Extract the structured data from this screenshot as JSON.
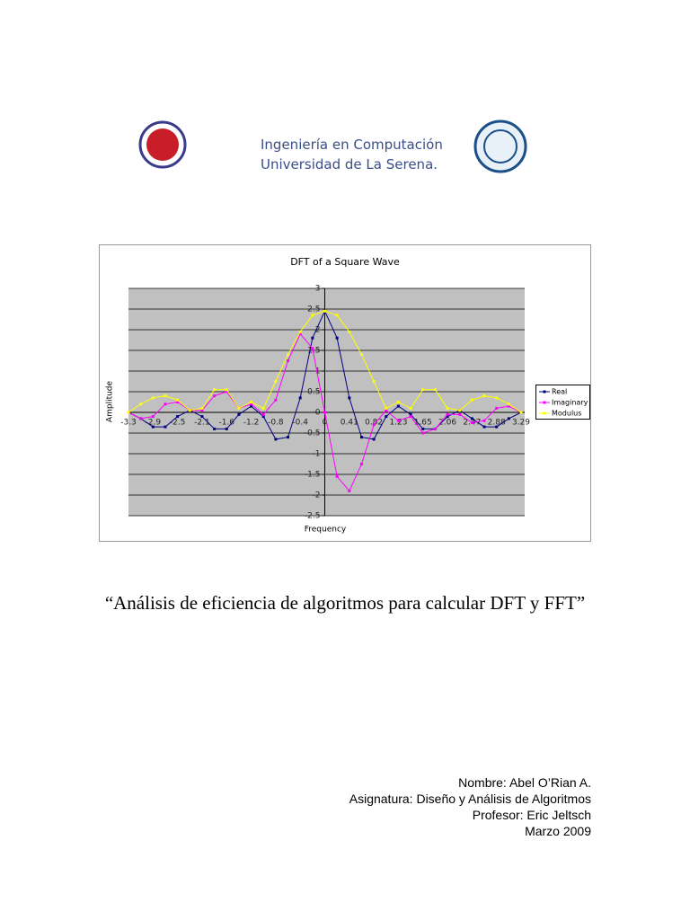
{
  "header": {
    "line1": "Ingeniería en Computación",
    "line2": "Universidad de La Serena."
  },
  "chart_data": {
    "type": "line",
    "title": "DFT of a Square Wave",
    "x_label": "Frequency",
    "y_label": "Amplitude",
    "categories": [
      "-3.3",
      null,
      "-2.9",
      null,
      "-2.5",
      null,
      "-2.1",
      null,
      "-1.6",
      null,
      "-1.2",
      null,
      "-0.8",
      null,
      "-0.4",
      null,
      "0",
      null,
      "0.41",
      null,
      "0.82",
      null,
      "1.23",
      null,
      "1.65",
      null,
      "2.06",
      null,
      "2.47",
      null,
      "2.88",
      null,
      "3.29"
    ],
    "series": [
      {
        "name": "Real",
        "color": "#000080",
        "values": [
          0,
          -0.15,
          -0.35,
          -0.35,
          -0.1,
          0.05,
          -0.1,
          -0.4,
          -0.4,
          -0.05,
          0.15,
          -0.1,
          -0.65,
          -0.6,
          0.35,
          1.8,
          2.45,
          1.8,
          0.35,
          -0.6,
          -0.65,
          -0.1,
          0.15,
          -0.05,
          -0.4,
          -0.4,
          -0.1,
          0.05,
          -0.15,
          -0.35,
          -0.35,
          -0.15,
          0
        ]
      },
      {
        "name": "Imaginary",
        "color": "#ff00ff",
        "values": [
          0,
          -0.15,
          -0.1,
          0.2,
          0.25,
          0.05,
          0.05,
          0.4,
          0.5,
          0.1,
          0.2,
          -0.05,
          0.3,
          1.25,
          1.9,
          1.55,
          0,
          -1.55,
          -1.9,
          -1.25,
          -0.3,
          0.05,
          -0.2,
          -0.1,
          -0.5,
          -0.4,
          -0.05,
          -0.05,
          -0.25,
          -0.2,
          0.1,
          0.15,
          0
        ]
      },
      {
        "name": "Modulus",
        "color": "#ffff00",
        "values": [
          0,
          0.2,
          0.35,
          0.4,
          0.3,
          0.05,
          0.1,
          0.55,
          0.55,
          0.1,
          0.25,
          0.1,
          0.75,
          1.4,
          1.95,
          2.35,
          2.45,
          2.35,
          1.95,
          1.4,
          0.75,
          0.1,
          0.25,
          0.1,
          0.55,
          0.55,
          0.1,
          0.05,
          0.3,
          0.4,
          0.35,
          0.2,
          0
        ]
      }
    ],
    "ylim": [
      -2.5,
      3
    ],
    "yticks": [
      -2.5,
      -2,
      -1.5,
      -1,
      -0.5,
      0,
      0.5,
      1,
      1.5,
      2,
      2.5,
      3
    ],
    "grid": true,
    "legend": "right"
  },
  "document": {
    "title": "“Análisis de eficiencia de algoritmos para calcular DFT y FFT”",
    "info": [
      "Nombre: Abel O’Rian A.",
      "Asignatura: Diseño y Análisis de Algoritmos",
      "Profesor: Eric Jeltsch",
      "Marzo 2009"
    ]
  }
}
